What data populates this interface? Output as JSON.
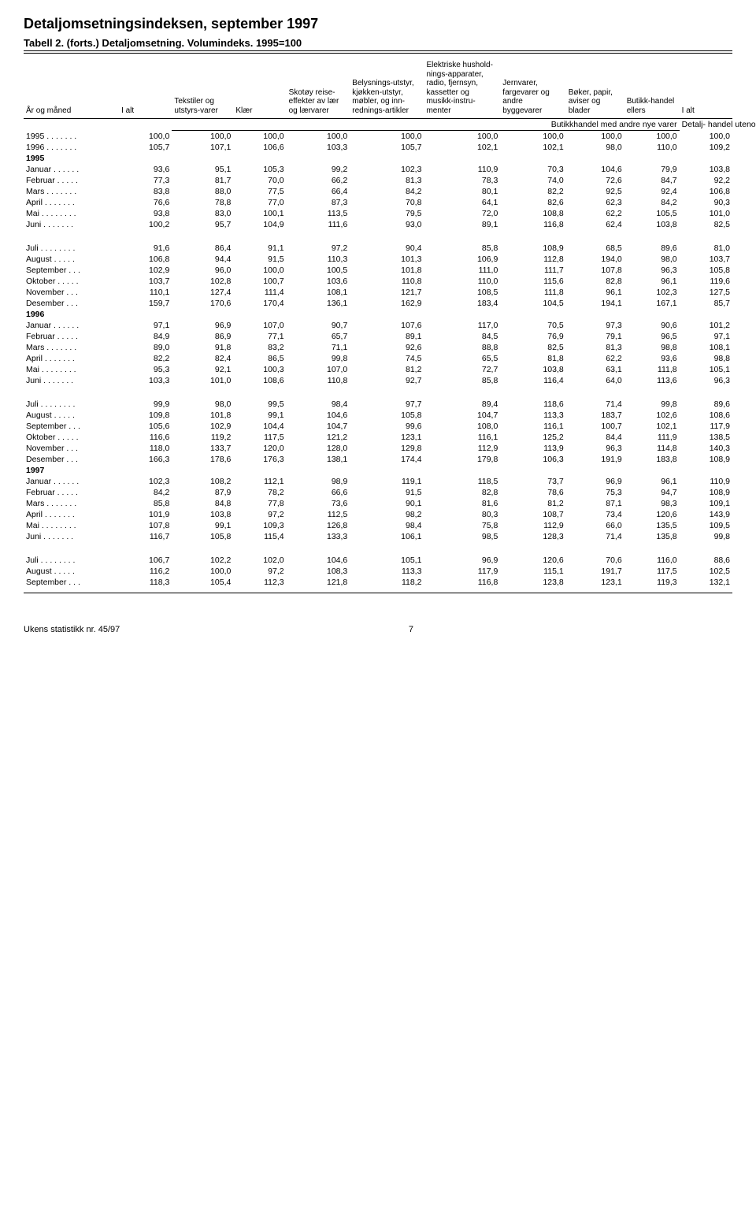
{
  "header": {
    "title": "Detaljomsetningsindeksen, september 1997",
    "subtitle": "Tabell 2. (forts.) Detaljomsetning. Volumindeks. 1995=100"
  },
  "super_header": {
    "center": "Butikkhandel med andre nye varer",
    "right": "Detalj-\nhandel\nutenom\nbutikk"
  },
  "columns": [
    "År og måned",
    "I alt",
    "Tekstiler og utstyrs-varer",
    "Klær",
    "Skotøy reise-effekter av lær og lærvarer",
    "Belysnings-utstyr, kjøkken-utstyr, møbler, og inn-rednings-artikler",
    "Elektriske hushold-nings-apparater, radio, fjernsyn, kassetter og musikk-instru-menter",
    "Jernvarer, fargevarer og andre byggevarer",
    "Bøker, papir, aviser og blader",
    "Butikk-handel ellers",
    "I alt"
  ],
  "groups": [
    {
      "label": null,
      "rows": [
        {
          "name": "1995 . . . . . . .",
          "v": [
            "100,0",
            "100,0",
            "100,0",
            "100,0",
            "100,0",
            "100,0",
            "100,0",
            "100,0",
            "100,0",
            "100,0"
          ]
        },
        {
          "name": "1996 . . . . . . .",
          "v": [
            "105,7",
            "107,1",
            "106,6",
            "103,3",
            "105,7",
            "102,1",
            "102,1",
            "98,0",
            "110,0",
            "109,2"
          ]
        }
      ]
    },
    {
      "label": "1995",
      "rows": [
        {
          "name": "Januar . . . . . .",
          "v": [
            "93,6",
            "95,1",
            "105,3",
            "99,2",
            "102,3",
            "110,9",
            "70,3",
            "104,6",
            "79,9",
            "103,8"
          ]
        },
        {
          "name": "Februar . . . . .",
          "v": [
            "77,3",
            "81,7",
            "70,0",
            "66,2",
            "81,3",
            "78,3",
            "74,0",
            "72,6",
            "84,7",
            "92,2"
          ]
        },
        {
          "name": "Mars . . . . . . .",
          "v": [
            "83,8",
            "88,0",
            "77,5",
            "66,4",
            "84,2",
            "80,1",
            "82,2",
            "92,5",
            "92,4",
            "106,8"
          ]
        },
        {
          "name": "April . . . . . . .",
          "v": [
            "76,6",
            "78,8",
            "77,0",
            "87,3",
            "70,8",
            "64,1",
            "82,6",
            "62,3",
            "84,2",
            "90,3"
          ]
        },
        {
          "name": "Mai . . . . . . . .",
          "v": [
            "93,8",
            "83,0",
            "100,1",
            "113,5",
            "79,5",
            "72,0",
            "108,8",
            "62,2",
            "105,5",
            "101,0"
          ]
        },
        {
          "name": "Juni . . . . . . .",
          "v": [
            "100,2",
            "95,7",
            "104,9",
            "111,6",
            "93,0",
            "89,1",
            "116,8",
            "62,4",
            "103,8",
            "82,5"
          ]
        }
      ]
    },
    {
      "label": null,
      "rows": [
        {
          "name": "Juli . . . . . . . .",
          "v": [
            "91,6",
            "86,4",
            "91,1",
            "97,2",
            "90,4",
            "85,8",
            "108,9",
            "68,5",
            "89,6",
            "81,0"
          ]
        },
        {
          "name": "August . . . . .",
          "v": [
            "106,8",
            "94,4",
            "91,5",
            "110,3",
            "101,3",
            "106,9",
            "112,8",
            "194,0",
            "98,0",
            "103,7"
          ]
        },
        {
          "name": "September . . .",
          "v": [
            "102,9",
            "96,0",
            "100,0",
            "100,5",
            "101,8",
            "111,0",
            "111,7",
            "107,8",
            "96,3",
            "105,8"
          ]
        },
        {
          "name": "Oktober . . . . .",
          "v": [
            "103,7",
            "102,8",
            "100,7",
            "103,6",
            "110,8",
            "110,0",
            "115,6",
            "82,8",
            "96,1",
            "119,6"
          ]
        },
        {
          "name": "November . . .",
          "v": [
            "110,1",
            "127,4",
            "111,4",
            "108,1",
            "121,7",
            "108,5",
            "111,8",
            "96,1",
            "102,3",
            "127,5"
          ]
        },
        {
          "name": "Desember . . .",
          "v": [
            "159,7",
            "170,6",
            "170,4",
            "136,1",
            "162,9",
            "183,4",
            "104,5",
            "194,1",
            "167,1",
            "85,7"
          ]
        }
      ]
    },
    {
      "label": "1996",
      "rows": [
        {
          "name": "Januar . . . . . .",
          "v": [
            "97,1",
            "96,9",
            "107,0",
            "90,7",
            "107,6",
            "117,0",
            "70,5",
            "97,3",
            "90,6",
            "101,2"
          ]
        },
        {
          "name": "Februar . . . . .",
          "v": [
            "84,9",
            "86,9",
            "77,1",
            "65,7",
            "89,1",
            "84,5",
            "76,9",
            "79,1",
            "96,5",
            "97,1"
          ]
        },
        {
          "name": "Mars . . . . . . .",
          "v": [
            "89,0",
            "91,8",
            "83,2",
            "71,1",
            "92,6",
            "88,8",
            "82,5",
            "81,3",
            "98,8",
            "108,1"
          ]
        },
        {
          "name": "April . . . . . . .",
          "v": [
            "82,2",
            "82,4",
            "86,5",
            "99,8",
            "74,5",
            "65,5",
            "81,8",
            "62,2",
            "93,6",
            "98,8"
          ]
        },
        {
          "name": "Mai . . . . . . . .",
          "v": [
            "95,3",
            "92,1",
            "100,3",
            "107,0",
            "81,2",
            "72,7",
            "103,8",
            "63,1",
            "111,8",
            "105,1"
          ]
        },
        {
          "name": "Juni . . . . . . .",
          "v": [
            "103,3",
            "101,0",
            "108,6",
            "110,8",
            "92,7",
            "85,8",
            "116,4",
            "64,0",
            "113,6",
            "96,3"
          ]
        }
      ]
    },
    {
      "label": null,
      "rows": [
        {
          "name": "Juli . . . . . . . .",
          "v": [
            "99,9",
            "98,0",
            "99,5",
            "98,4",
            "97,7",
            "89,4",
            "118,6",
            "71,4",
            "99,8",
            "89,6"
          ]
        },
        {
          "name": "August . . . . .",
          "v": [
            "109,8",
            "101,8",
            "99,1",
            "104,6",
            "105,8",
            "104,7",
            "113,3",
            "183,7",
            "102,6",
            "108,6"
          ]
        },
        {
          "name": "September . . .",
          "v": [
            "105,6",
            "102,9",
            "104,4",
            "104,7",
            "99,6",
            "108,0",
            "116,1",
            "100,7",
            "102,1",
            "117,9"
          ]
        },
        {
          "name": "Oktober . . . . .",
          "v": [
            "116,6",
            "119,2",
            "117,5",
            "121,2",
            "123,1",
            "116,1",
            "125,2",
            "84,4",
            "111,9",
            "138,5"
          ]
        },
        {
          "name": "November . . .",
          "v": [
            "118,0",
            "133,7",
            "120,0",
            "128,0",
            "129,8",
            "112,9",
            "113,9",
            "96,3",
            "114,8",
            "140,3"
          ]
        },
        {
          "name": "Desember . . .",
          "v": [
            "166,3",
            "178,6",
            "176,3",
            "138,1",
            "174,4",
            "179,8",
            "106,3",
            "191,9",
            "183,8",
            "108,9"
          ]
        }
      ]
    },
    {
      "label": "1997",
      "rows": [
        {
          "name": "Januar . . . . . .",
          "v": [
            "102,3",
            "108,2",
            "112,1",
            "98,9",
            "119,1",
            "118,5",
            "73,7",
            "96,9",
            "96,1",
            "110,9"
          ]
        },
        {
          "name": "Februar . . . . .",
          "v": [
            "84,2",
            "87,9",
            "78,2",
            "66,6",
            "91,5",
            "82,8",
            "78,6",
            "75,3",
            "94,7",
            "108,9"
          ]
        },
        {
          "name": "Mars . . . . . . .",
          "v": [
            "85,8",
            "84,8",
            "77,8",
            "73,6",
            "90,1",
            "81,6",
            "81,2",
            "87,1",
            "98,3",
            "109,1"
          ]
        },
        {
          "name": "April . . . . . . .",
          "v": [
            "101,9",
            "103,8",
            "97,2",
            "112,5",
            "98,2",
            "80,3",
            "108,7",
            "73,4",
            "120,6",
            "143,9"
          ]
        },
        {
          "name": "Mai . . . . . . . .",
          "v": [
            "107,8",
            "99,1",
            "109,3",
            "126,8",
            "98,4",
            "75,8",
            "112,9",
            "66,0",
            "135,5",
            "109,5"
          ]
        },
        {
          "name": "Juni . . . . . . .",
          "v": [
            "116,7",
            "105,8",
            "115,4",
            "133,3",
            "106,1",
            "98,5",
            "128,3",
            "71,4",
            "135,8",
            "99,8"
          ]
        }
      ]
    },
    {
      "label": null,
      "rows": [
        {
          "name": "Juli . . . . . . . .",
          "v": [
            "106,7",
            "102,2",
            "102,0",
            "104,6",
            "105,1",
            "96,9",
            "120,6",
            "70,6",
            "116,0",
            "88,6"
          ]
        },
        {
          "name": "August . . . . .",
          "v": [
            "116,2",
            "100,0",
            "97,2",
            "108,3",
            "113,3",
            "117,9",
            "115,1",
            "191,7",
            "117,5",
            "102,5"
          ]
        },
        {
          "name": "September . . .",
          "v": [
            "118,3",
            "105,4",
            "112,3",
            "121,8",
            "118,2",
            "116,8",
            "123,8",
            "123,1",
            "119,3",
            "132,1"
          ]
        }
      ]
    }
  ],
  "footer": {
    "left": "Ukens statistikk nr. 45/97",
    "page": "7"
  }
}
